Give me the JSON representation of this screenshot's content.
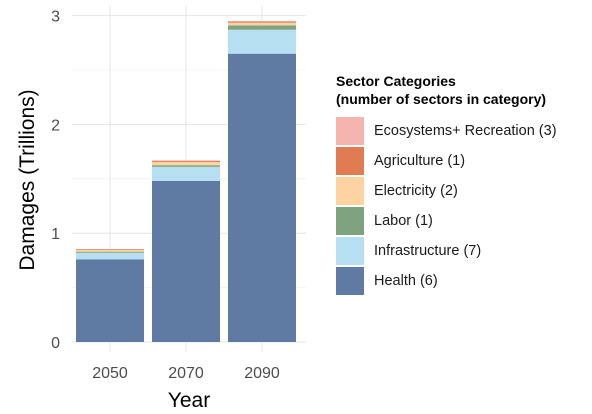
{
  "chart_data": {
    "type": "bar",
    "stacked": true,
    "categories": [
      "2050",
      "2070",
      "2090"
    ],
    "series": [
      {
        "name": "Health (6)",
        "color": "#5f7aa3",
        "values": [
          0.76,
          1.48,
          2.65
        ]
      },
      {
        "name": "Infrastructure (7)",
        "color": "#b6e0f2",
        "values": [
          0.06,
          0.13,
          0.22
        ]
      },
      {
        "name": "Labor (1)",
        "color": "#7fa37f",
        "values": [
          0.01,
          0.015,
          0.04
        ]
      },
      {
        "name": "Electricity (2)",
        "color": "#fcd3a1",
        "values": [
          0.015,
          0.03,
          0.025
        ]
      },
      {
        "name": "Agriculture (1)",
        "color": "#e07b52",
        "values": [
          0.005,
          0.01,
          0.01
        ]
      },
      {
        "name": "Ecosystems+ Recreation (3)",
        "color": "#f5b4ae",
        "values": [
          0.005,
          0.005,
          0.005
        ]
      }
    ],
    "xlabel": "Year",
    "ylabel": "Damages (Trillions)",
    "ylim": [
      0,
      3
    ],
    "yticks": [
      "0",
      "1",
      "2",
      "3"
    ],
    "grid": true,
    "legend": {
      "position": "right",
      "title_line1": "Sector Categories",
      "title_line2": "(number of sectors in category)",
      "order": [
        "Ecosystems+ Recreation (3)",
        "Agriculture (1)",
        "Electricity (2)",
        "Labor (1)",
        "Infrastructure (7)",
        "Health (6)"
      ]
    }
  }
}
